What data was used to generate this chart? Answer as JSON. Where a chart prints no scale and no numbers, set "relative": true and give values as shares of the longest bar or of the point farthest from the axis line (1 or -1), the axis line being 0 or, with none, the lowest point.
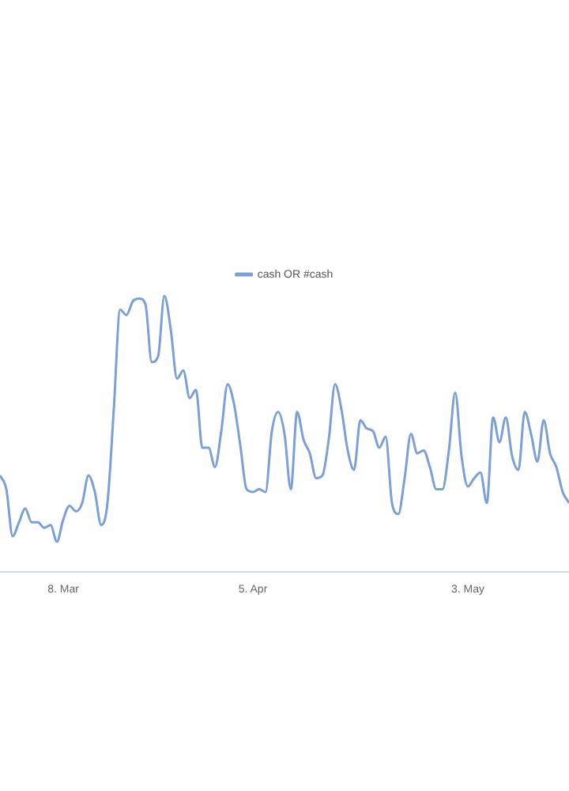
{
  "chart_data": {
    "type": "line",
    "relative": true,
    "legend": "top",
    "marker": "none",
    "categories": [
      null,
      null,
      null,
      null,
      null,
      null,
      null,
      null,
      null,
      null,
      "8. Mar",
      null,
      null,
      null,
      null,
      null,
      null,
      null,
      null,
      null,
      null,
      null,
      null,
      null,
      null,
      null,
      null,
      null,
      null,
      null,
      null,
      null,
      null,
      null,
      null,
      null,
      null,
      null,
      null,
      null,
      "5. Apr",
      null,
      null,
      null,
      null,
      null,
      null,
      null,
      null,
      null,
      null,
      null,
      null,
      null,
      null,
      null,
      null,
      null,
      null,
      null,
      null,
      null,
      null,
      null,
      null,
      null,
      null,
      null,
      null,
      null,
      null,
      null,
      null,
      null,
      "3. May",
      null,
      null,
      null,
      null,
      null,
      null,
      null,
      null,
      null,
      null,
      null,
      null,
      null,
      null,
      null,
      null
    ],
    "series": [
      {
        "name": "cash OR #cash",
        "color": "#7b9fd9",
        "values": [
          0.35,
          0.3,
          0.13,
          0.18,
          0.23,
          0.18,
          0.18,
          0.16,
          0.17,
          0.11,
          0.19,
          0.24,
          0.22,
          0.25,
          0.35,
          0.29,
          0.17,
          0.25,
          0.59,
          0.95,
          0.93,
          0.98,
          0.99,
          0.97,
          0.76,
          0.78,
          1.0,
          0.88,
          0.7,
          0.73,
          0.63,
          0.66,
          0.45,
          0.45,
          0.38,
          0.51,
          0.68,
          0.61,
          0.46,
          0.3,
          0.29,
          0.3,
          0.29,
          0.51,
          0.58,
          0.5,
          0.3,
          0.58,
          0.48,
          0.43,
          0.34,
          0.35,
          0.48,
          0.68,
          0.59,
          0.44,
          0.37,
          0.55,
          0.52,
          0.51,
          0.45,
          0.49,
          0.25,
          0.21,
          0.34,
          0.5,
          0.43,
          0.44,
          0.38,
          0.3,
          0.3,
          0.44,
          0.65,
          0.42,
          0.31,
          0.34,
          0.36,
          0.25,
          0.56,
          0.47,
          0.56,
          0.42,
          0.37,
          0.58,
          0.5,
          0.4,
          0.55,
          0.43,
          0.38,
          0.29,
          0.25
        ]
      }
    ]
  }
}
